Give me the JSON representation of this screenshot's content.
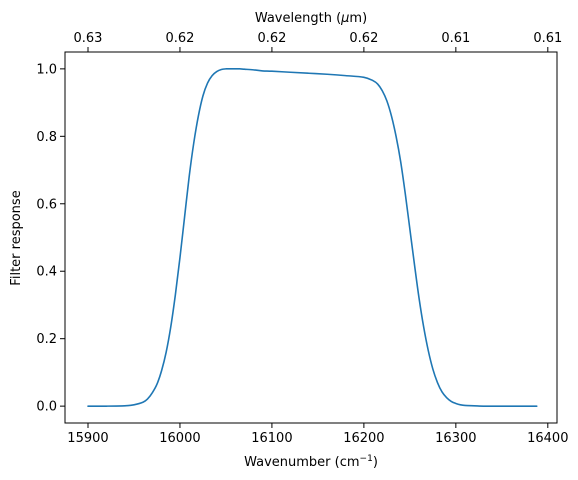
{
  "chart_data": {
    "type": "line",
    "title": "",
    "xlabel": "Wavenumber (cm",
    "xlabel_sup": "−1",
    "xlabel_suffix": ")",
    "top_xlabel": "Wavelength (",
    "top_xlabel_mu": "μ",
    "top_xlabel_suffix": "m)",
    "ylabel": "Filter response",
    "xlim": [
      15875,
      16410
    ],
    "ylim": [
      -0.05,
      1.05
    ],
    "x_ticks": [
      15900,
      16000,
      16100,
      16200,
      16300,
      16400
    ],
    "x_tick_labels": [
      "15900",
      "16000",
      "16100",
      "16200",
      "16300",
      "16400"
    ],
    "y_ticks": [
      0.0,
      0.2,
      0.4,
      0.6,
      0.8,
      1.0
    ],
    "y_tick_labels": [
      "0.0",
      "0.2",
      "0.4",
      "0.6",
      "0.8",
      "1.0"
    ],
    "top_ticks_at_wavenumber": [
      15900,
      16000,
      16100,
      16200,
      16300,
      16400
    ],
    "top_tick_labels": [
      "0.63",
      "0.62",
      "0.62",
      "0.62",
      "0.61",
      "0.61"
    ],
    "grid": false,
    "series": [
      {
        "color": "#1f77b4",
        "x": [
          15900,
          15920,
          15940,
          15950,
          15960,
          15965,
          15970,
          15975,
          15980,
          15985,
          15990,
          15995,
          16000,
          16005,
          16010,
          16015,
          16020,
          16025,
          16030,
          16035,
          16040,
          16045,
          16050,
          16055,
          16060,
          16065,
          16070,
          16080,
          16090,
          16100,
          16120,
          16140,
          16160,
          16180,
          16200,
          16210,
          16215,
          16220,
          16225,
          16230,
          16235,
          16240,
          16245,
          16250,
          16255,
          16260,
          16265,
          16270,
          16275,
          16280,
          16285,
          16290,
          16295,
          16300,
          16305,
          16310,
          16320,
          16330,
          16340,
          16360,
          16388
        ],
        "y": [
          0.0,
          0.0,
          0.001,
          0.004,
          0.012,
          0.022,
          0.04,
          0.065,
          0.105,
          0.16,
          0.235,
          0.33,
          0.44,
          0.56,
          0.68,
          0.78,
          0.86,
          0.92,
          0.958,
          0.98,
          0.992,
          0.998,
          1.0,
          1.0,
          1.0,
          1.0,
          0.999,
          0.997,
          0.994,
          0.993,
          0.99,
          0.987,
          0.984,
          0.98,
          0.975,
          0.965,
          0.955,
          0.935,
          0.905,
          0.86,
          0.8,
          0.725,
          0.63,
          0.525,
          0.42,
          0.32,
          0.235,
          0.165,
          0.11,
          0.07,
          0.042,
          0.025,
          0.014,
          0.008,
          0.004,
          0.002,
          0.001,
          0.0,
          0.0,
          0.0,
          0.0
        ]
      }
    ]
  }
}
